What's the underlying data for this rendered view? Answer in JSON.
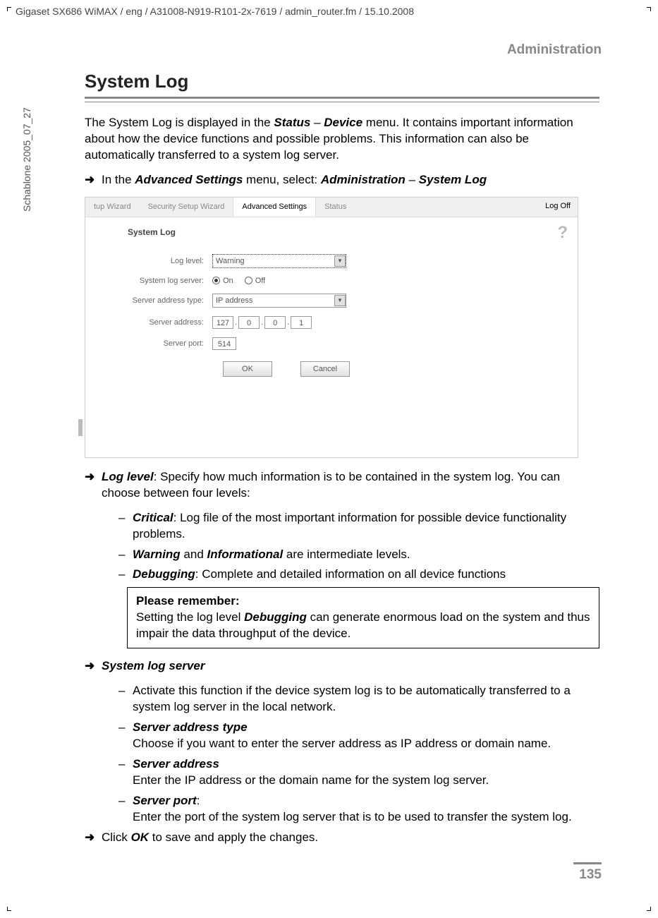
{
  "header_path": "Gigaset SX686 WiMAX / eng / A31008-N919-R101-2x-7619 / admin_router.fm / 15.10.2008",
  "side_label": "Schablone 2005_07_27",
  "section_label": "Administration",
  "h1": "System Log",
  "intro_part1": "The System Log is displayed in the ",
  "intro_status": "Status",
  "intro_dash": " – ",
  "intro_device": "Device",
  "intro_part2": " menu. It contains important information about how the device functions and possible problems. This information can also be automatically transferred to a system log server.",
  "nav_text1": "In the ",
  "nav_adv": "Advanced Settings",
  "nav_text2": " menu, select: ",
  "nav_admin": "Administration",
  "nav_syslog": "System Log",
  "screenshot": {
    "tabs": [
      "tup Wizard",
      "Security Setup Wizard",
      "Advanced Settings",
      "Status"
    ],
    "active_tab_index": 2,
    "logoff": "Log Off",
    "title": "System Log",
    "help": "?",
    "rows": {
      "log_level_label": "Log level:",
      "log_level_value": "Warning",
      "sys_server_label": "System log server:",
      "radio_on": "On",
      "radio_off": "Off",
      "addr_type_label": "Server address type:",
      "addr_type_value": "IP address",
      "server_addr_label": "Server address:",
      "ip": [
        "127",
        "0",
        "0",
        "1"
      ],
      "server_port_label": "Server port:",
      "server_port_value": "514"
    },
    "buttons": {
      "ok": "OK",
      "cancel": "Cancel"
    }
  },
  "loglevel_label": "Log level",
  "loglevel_text": ": Specify how much information is to be contained in the system log. You can choose between four levels:",
  "critical_label": "Critical",
  "critical_text": ": Log file of the most important information for possible device functionality problems.",
  "warning_label": "Warning",
  "info_and": " and ",
  "info_label": "Informational",
  "info_text": " are intermediate levels.",
  "debug_label": "Debugging",
  "debug_text": ": Complete and detailed information on all device functions",
  "note_title": "Please remember:",
  "note_text1": "Setting the log level ",
  "note_debug": "Debugging",
  "note_text2": " can generate enormous load on the system and thus impair the data throughput of the device.",
  "sys_server_label": "System log server",
  "sys_server_activate": "Activate this function if the device system log is to be automatically transferred to a system log server in the local network.",
  "addr_type_label": "Server address type",
  "addr_type_text": "Choose if you want to enter the server address as IP address or domain name.",
  "server_addr_label": "Server address",
  "server_addr_text": "Enter the IP address or the domain name for the system log server.",
  "server_port_label": "Server port",
  "server_port_text": "Enter the port of the system log server that is to be used to transfer the system log.",
  "click_ok_1": "Click ",
  "click_ok_label": "OK",
  "click_ok_2": " to save and apply the changes.",
  "page_num": "135"
}
